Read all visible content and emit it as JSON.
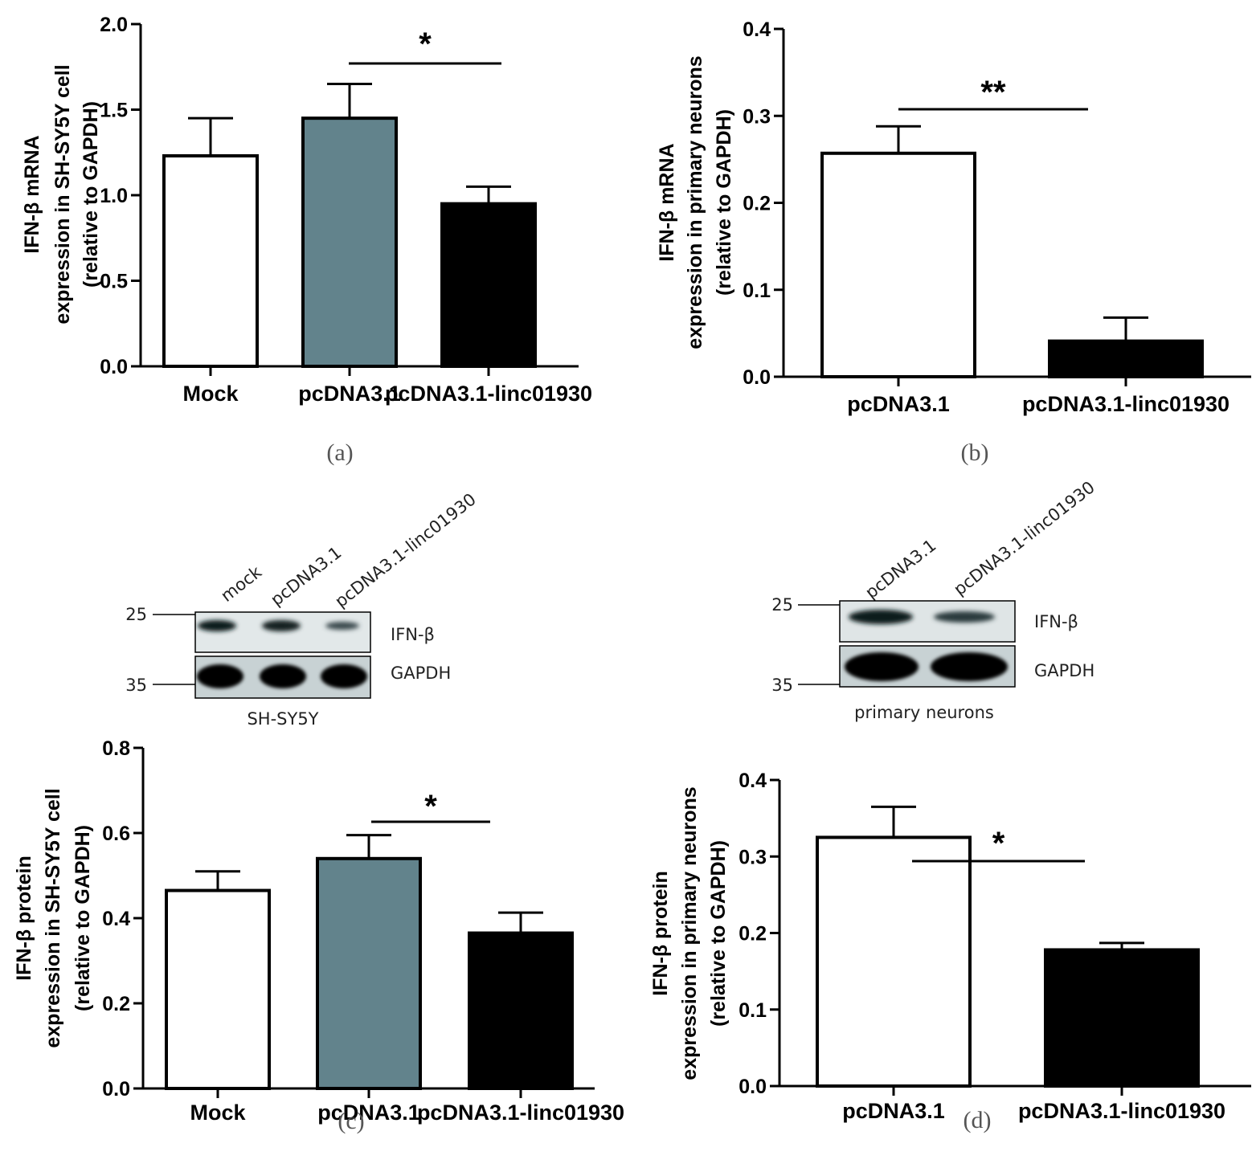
{
  "colors": {
    "white": "#ffffff",
    "gray": "#62838c",
    "black": "#000000"
  },
  "chart_data": [
    {
      "id": "a",
      "type": "bar",
      "panel_label": "(a)",
      "ylabel_lines": [
        "IFN-β  mRNA",
        "expression in SH-SY5Y cell",
        "(relative to GAPDH)"
      ],
      "ylim": [
        0,
        2.0
      ],
      "yticks": [
        "0.0",
        "0.5",
        "1.0",
        "1.5",
        "2.0"
      ],
      "categories": [
        "Mock",
        "pcDNA3.1",
        "pcDNA3.1-linc01930"
      ],
      "values": [
        1.23,
        1.45,
        0.95
      ],
      "errors": [
        0.22,
        0.2,
        0.1
      ],
      "fills": [
        "white",
        "gray",
        "black"
      ],
      "significance": {
        "label": "*",
        "from": 1,
        "to": 2
      }
    },
    {
      "id": "b",
      "type": "bar",
      "panel_label": "(b)",
      "ylabel_lines": [
        "IFN-β  mRNA",
        "expression in primary neurons",
        "(relative to GAPDH)"
      ],
      "ylim": [
        0,
        0.4
      ],
      "yticks": [
        "0.0",
        "0.1",
        "0.2",
        "0.3",
        "0.4"
      ],
      "categories": [
        "pcDNA3.1",
        "pcDNA3.1-linc01930"
      ],
      "values": [
        0.257,
        0.041
      ],
      "errors": [
        0.031,
        0.027
      ],
      "fills": [
        "white",
        "black"
      ],
      "significance": {
        "label": "**",
        "from": 0,
        "to": 1
      }
    },
    {
      "id": "c",
      "type": "bar",
      "panel_label": "(c)",
      "ylabel_lines": [
        "IFN-β  protein",
        "expression in SH-SY5Y cell",
        "(relative to GAPDH)"
      ],
      "ylim": [
        0,
        0.8
      ],
      "yticks": [
        "0.0",
        "0.2",
        "0.4",
        "0.6",
        "0.8"
      ],
      "categories": [
        "Mock",
        "pcDNA3.1",
        "pcDNA3.1-linc01930"
      ],
      "values": [
        0.465,
        0.54,
        0.365
      ],
      "errors": [
        0.045,
        0.055,
        0.048
      ],
      "fills": [
        "white",
        "gray",
        "black"
      ],
      "significance": {
        "label": "*",
        "from": 1,
        "to": 2
      }
    },
    {
      "id": "d",
      "type": "bar",
      "panel_label": "(d)",
      "ylabel_lines": [
        "IFN-β  protein",
        "expression in primary neurons",
        "(relative to GAPDH)"
      ],
      "ylim": [
        0,
        0.4
      ],
      "yticks": [
        "0.0",
        "0.1",
        "0.2",
        "0.3",
        "0.4"
      ],
      "categories": [
        "pcDNA3.1",
        "pcDNA3.1-linc01930"
      ],
      "values": [
        0.325,
        0.178
      ],
      "errors": [
        0.04,
        0.009
      ],
      "fills": [
        "white",
        "black"
      ],
      "significance": {
        "label": "*",
        "from": 0,
        "to": 1
      }
    }
  ],
  "blots": [
    {
      "id": "c",
      "cell": "SH-SY5Y",
      "lanes": [
        "mock",
        "pcDNA3.1",
        "pcDNA3.1-linc01930"
      ],
      "markers": [
        "25",
        "35"
      ],
      "bands": [
        "IFN-β",
        "GAPDH"
      ]
    },
    {
      "id": "d",
      "cell": "primary neurons",
      "lanes": [
        "pcDNA3.1",
        "pcDNA3.1-linc01930"
      ],
      "markers": [
        "25",
        "35"
      ],
      "bands": [
        "IFN-β",
        "GAPDH"
      ]
    }
  ]
}
